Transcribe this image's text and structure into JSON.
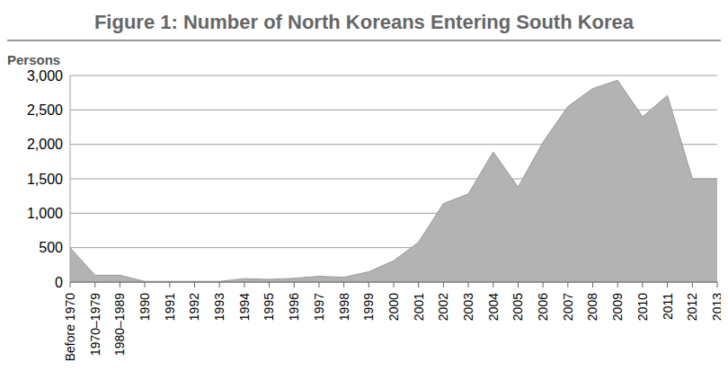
{
  "chart_data": {
    "type": "area",
    "title": "Figure 1: Number of North Koreans Entering South Korea",
    "y_label": "Persons",
    "categories": [
      "Before 1970",
      "1970–1979",
      "1980–1989",
      "1990",
      "1991",
      "1992",
      "1993",
      "1994",
      "1995",
      "1996",
      "1997",
      "1998",
      "1999",
      "2000",
      "2001",
      "2002",
      "2003",
      "2004",
      "2005",
      "2006",
      "2007",
      "2008",
      "2009",
      "2010",
      "2011",
      "2012",
      "2013"
    ],
    "values": [
      500,
      100,
      100,
      10,
      10,
      10,
      10,
      50,
      40,
      55,
      85,
      70,
      150,
      310,
      580,
      1140,
      1280,
      1890,
      1380,
      2030,
      2550,
      2810,
      2930,
      2400,
      2710,
      1500,
      1500
    ],
    "color": "#b3b3b3",
    "ylim": [
      0,
      3000
    ],
    "yticks": [
      0,
      500,
      {
        "value": 1000,
        "label": "1,000"
      },
      {
        "value": 1500,
        "label": "1,500"
      },
      {
        "value": 2000,
        "label": "2,000"
      },
      {
        "value": 2500,
        "label": "2,500"
      },
      {
        "value": 3000,
        "label": "3,000"
      }
    ],
    "grid": true
  }
}
